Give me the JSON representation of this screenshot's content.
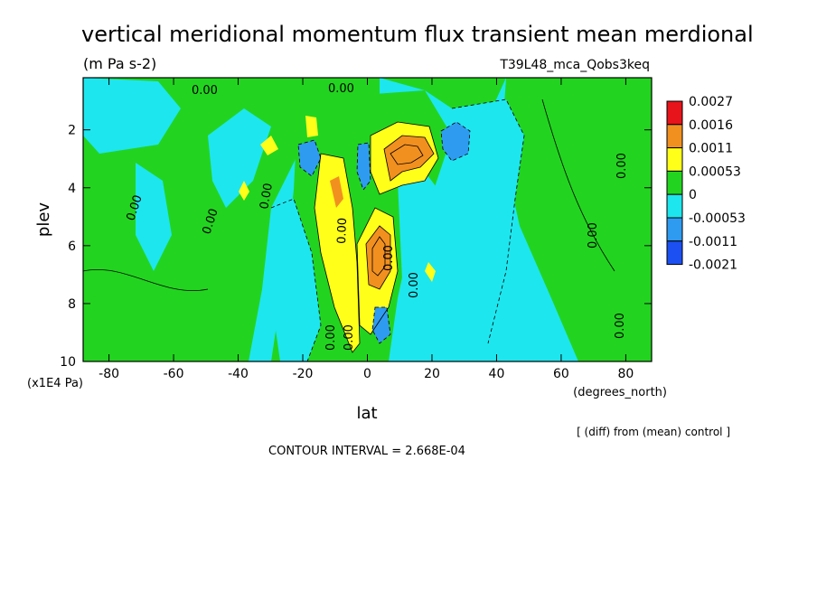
{
  "title": "vertical meridional momentum flux transient mean merdional",
  "units": "(m Pa s-2)",
  "run_id": "T39L48_mca_Qobs3keq",
  "xlabel": "lat",
  "xunits": "(degrees_north)",
  "ylabel": "plev",
  "yunits": "(x1E4 Pa)",
  "diff_note": "[ (diff) from (mean) control ]",
  "contour_interval": "CONTOUR INTERVAL = 2.668E-04",
  "contour_labels": [
    "0.00",
    "0.00",
    "0.00",
    "0.00",
    "0.00",
    "0.00",
    "0.00",
    "0.00",
    "0.00",
    "0.00",
    "0.00",
    "0.00",
    "0.00"
  ],
  "chart_data": {
    "type": "heatmap",
    "title": "vertical meridional momentum flux transient mean merdional",
    "xlabel": "lat",
    "ylabel": "plev",
    "x_ticks": [
      -80,
      -60,
      -40,
      -20,
      0,
      20,
      40,
      60,
      80
    ],
    "x_tick_labels": [
      "-80",
      "-60",
      "-40",
      "-20",
      "0",
      "20",
      "40",
      "60",
      "80"
    ],
    "y_ticks": [
      2,
      4,
      6,
      8,
      10
    ],
    "y_tick_labels": [
      "2",
      "4",
      "6",
      "8",
      "10"
    ],
    "xlim": [
      -88,
      88
    ],
    "ylim": [
      10,
      0.2
    ],
    "y_inverted": true,
    "colorbar": {
      "levels": [
        "0.0027",
        "0.0016",
        "0.0011",
        "0.00053",
        "0",
        "-0.00053",
        "-0.0011",
        "-0.0021"
      ],
      "colors": [
        "#e8141b",
        "#f2901f",
        "#ffff1a",
        "#22d41f",
        "#1ee6ee",
        "#2f9bf0",
        "#1c50f2"
      ]
    },
    "colors": {
      "strong_positive": "#e8141b",
      "positive_high": "#f2901f",
      "positive_mid": "#ffff1a",
      "positive_low": "#22d41f",
      "negative_low": "#1ee6ee",
      "negative_mid": "#2f9bf0",
      "negative_high": "#1c50f2"
    },
    "features": [
      {
        "kind": "positive_max",
        "lat": 12,
        "plev": 2.8,
        "level": "0.0016"
      },
      {
        "kind": "positive_max",
        "lat": 5,
        "plev": 6.2,
        "level": "0.0016"
      },
      {
        "kind": "positive_max",
        "lat": -11,
        "plev": 4.2,
        "level": "0.0011"
      },
      {
        "kind": "negative_min",
        "lat": 28,
        "plev": 2.3,
        "level": "-0.0011"
      },
      {
        "kind": "negative_min",
        "lat": -19,
        "plev": 3.0,
        "level": "-0.0011"
      },
      {
        "kind": "negative_min",
        "lat": 5,
        "plev": 8.5,
        "level": "-0.0011"
      }
    ]
  }
}
